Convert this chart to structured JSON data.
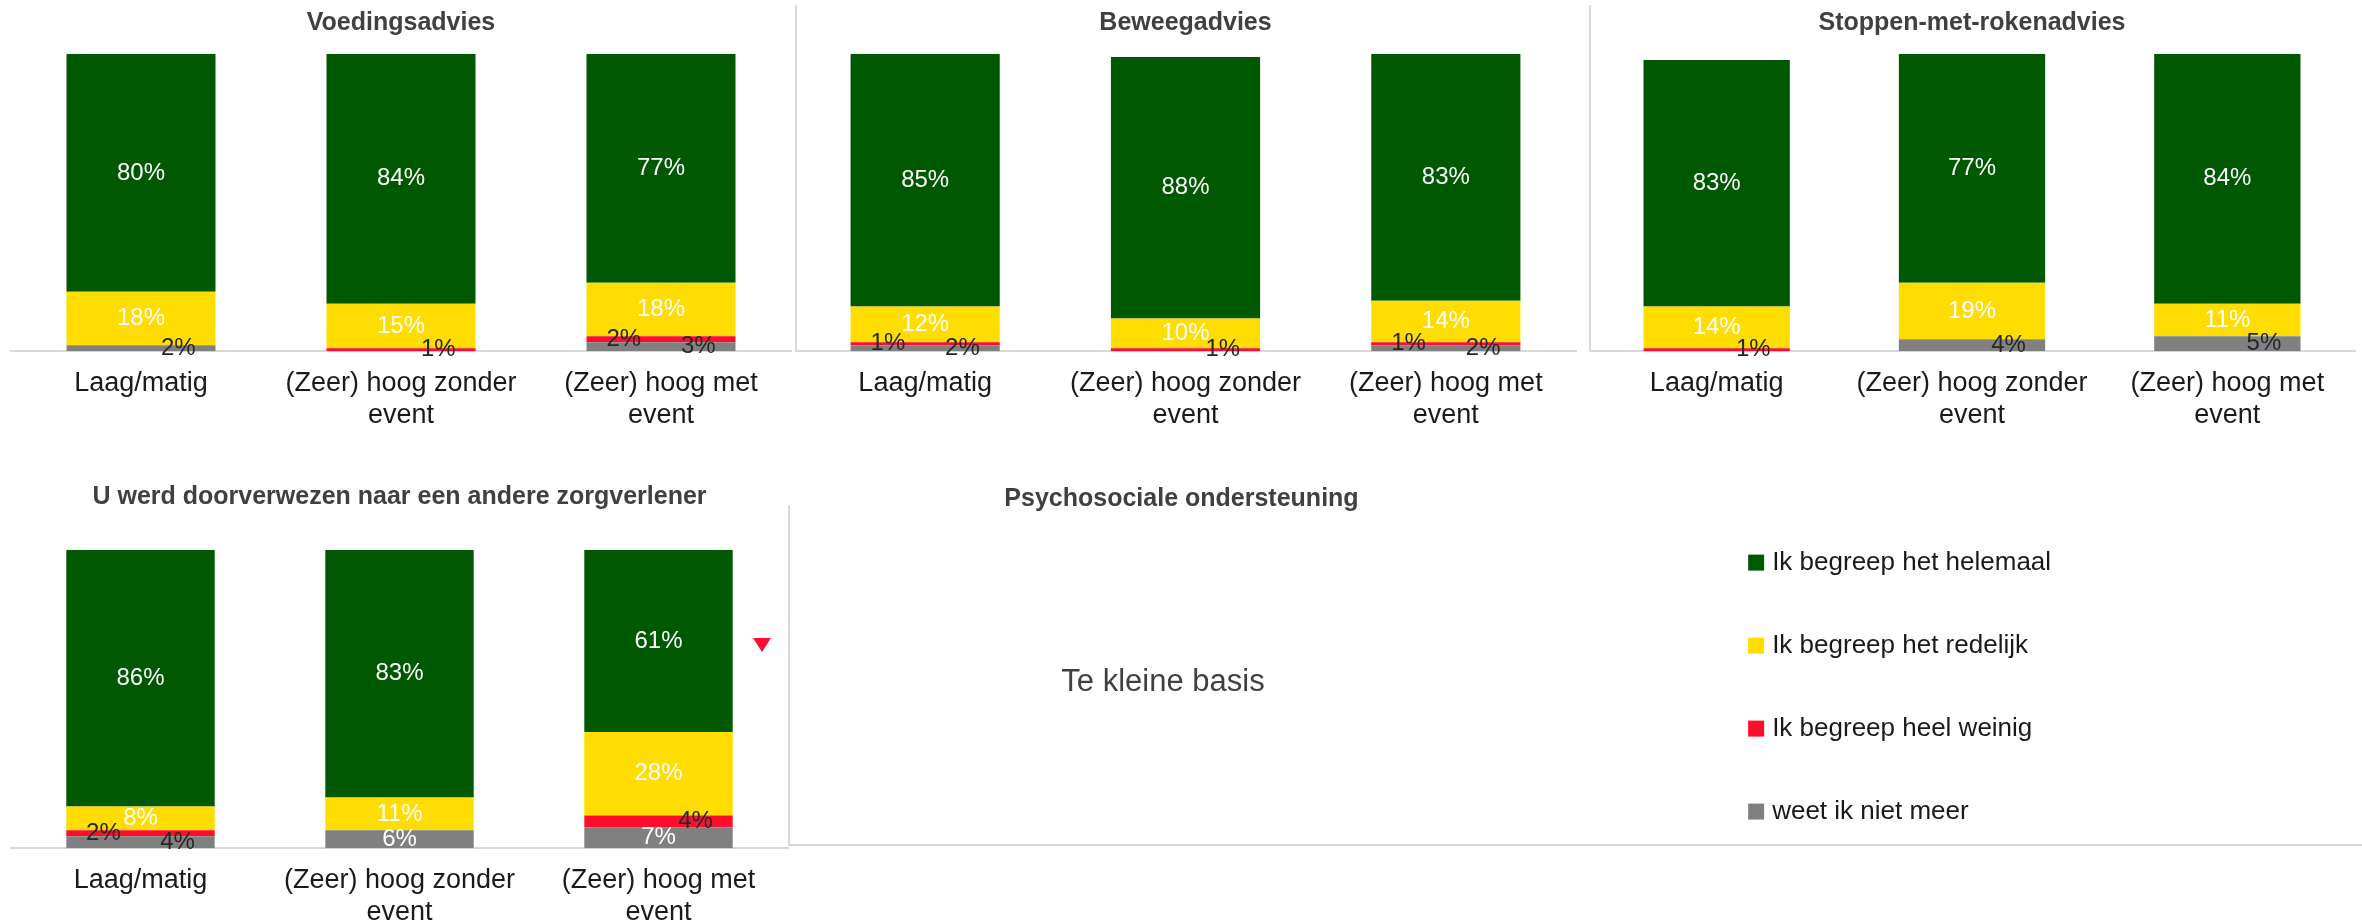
{
  "chart_data": [
    {
      "type": "bar",
      "title": "Voedingsadvies",
      "categories": [
        "Laag/matig",
        "(Zeer) hoog zonder event",
        "(Zeer) hoog met event"
      ],
      "stacked": true,
      "series": [
        {
          "color": "#808080",
          "values": [
            2,
            null,
            3
          ],
          "value_labels": [
            "2%",
            null,
            "3%"
          ]
        },
        {
          "color": "#ff0d2d",
          "values": [
            null,
            1,
            2
          ],
          "value_labels": [
            null,
            "1%",
            "2%"
          ]
        },
        {
          "color": "#ffdd00",
          "values": [
            18,
            15,
            18
          ],
          "value_labels": [
            "18%",
            "15%",
            "18%"
          ]
        },
        {
          "color": "#005800",
          "values": [
            80,
            84,
            77
          ],
          "value_labels": [
            "80%",
            "84%",
            "77%"
          ]
        }
      ]
    },
    {
      "type": "bar",
      "title": "Beweegadvies",
      "categories": [
        "Laag/matig",
        "(Zeer) hoog zonder event",
        "(Zeer) hoog met event"
      ],
      "stacked": true,
      "series": [
        {
          "color": "#808080",
          "values": [
            2,
            null,
            2
          ],
          "value_labels": [
            "2%",
            null,
            "2%"
          ]
        },
        {
          "color": "#ff0d2d",
          "values": [
            1,
            1,
            1
          ],
          "value_labels": [
            "1%",
            "1%",
            "1%"
          ]
        },
        {
          "color": "#ffdd00",
          "values": [
            12,
            10,
            14
          ],
          "value_labels": [
            "12%",
            "10%",
            "14%"
          ]
        },
        {
          "color": "#005800",
          "values": [
            85,
            88,
            83
          ],
          "value_labels": [
            "85%",
            "88%",
            "83%"
          ]
        }
      ]
    },
    {
      "type": "bar",
      "title": "Stoppen-met-rokenadvies",
      "categories": [
        "Laag/matig",
        "(Zeer) hoog zonder event",
        "(Zeer) hoog met event"
      ],
      "stacked": true,
      "series": [
        {
          "color": "#808080",
          "values": [
            null,
            4,
            5
          ],
          "value_labels": [
            null,
            "4%",
            "5%"
          ]
        },
        {
          "color": "#ff0d2d",
          "values": [
            1,
            null,
            null
          ],
          "value_labels": [
            "1%",
            null,
            null
          ]
        },
        {
          "color": "#ffdd00",
          "values": [
            14,
            19,
            11
          ],
          "value_labels": [
            "14%",
            "19%",
            "11%"
          ]
        },
        {
          "color": "#005800",
          "values": [
            83,
            77,
            84
          ],
          "value_labels": [
            "83%",
            "77%",
            "84%"
          ]
        }
      ]
    },
    {
      "type": "bar",
      "title": "U werd doorverwezen naar een andere zorgverlener",
      "categories": [
        "Laag/matig",
        "(Zeer) hoog zonder event",
        "(Zeer) hoog met event"
      ],
      "stacked": true,
      "legend": "right",
      "series": [
        {
          "name": "weet ik niet meer",
          "color": "#808080",
          "values": [
            4,
            6,
            7
          ],
          "value_labels": [
            "4%",
            "6%",
            "7%"
          ]
        },
        {
          "name": "Ik begreep heel weinig",
          "color": "#ff0d2d",
          "values": [
            2,
            null,
            4
          ],
          "value_labels": [
            "2%",
            null,
            "4%"
          ]
        },
        {
          "name": "Ik begreep het redelijk",
          "color": "#ffdd00",
          "values": [
            8,
            11,
            28
          ],
          "value_labels": [
            "8%",
            "11%",
            "28%"
          ]
        },
        {
          "name": "Ik begreep het helemaal",
          "color": "#005800",
          "values": [
            86,
            83,
            61
          ],
          "value_labels": [
            "86%",
            "83%",
            "61%"
          ]
        }
      ]
    },
    {
      "type": "other",
      "title": "Psychosociale ondersteuning",
      "annotations": [
        "Te kleine basis"
      ]
    }
  ]
}
